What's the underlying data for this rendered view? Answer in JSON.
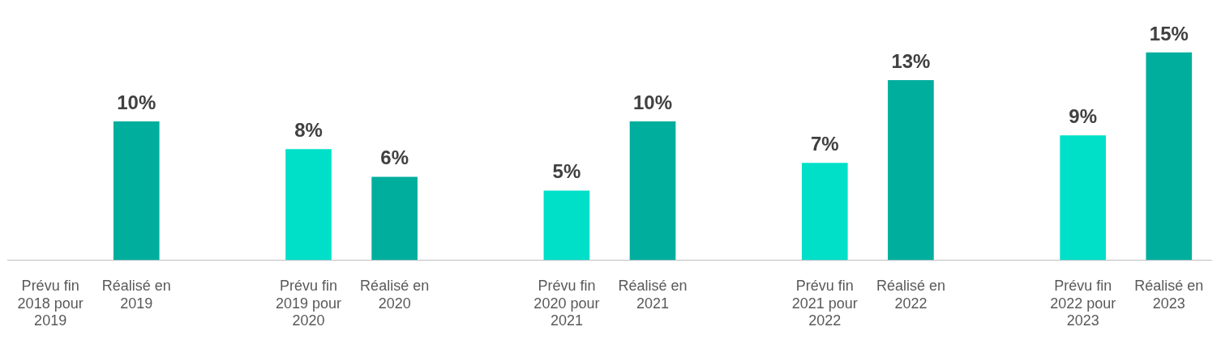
{
  "chart_data": {
    "type": "bar",
    "categories": [
      "Prévu fin 2018 pour 2019",
      "Réalisé en 2019",
      "Prévu fin 2019 pour 2020",
      "Réalisé en 2020",
      "Prévu fin 2020 pour 2021",
      "Réalisé en 2021",
      "Prévu fin 2021 pour 2022",
      "Réalisé en 2022",
      "Prévu fin 2022 pour 2023",
      "Réalisé en 2023"
    ],
    "values": [
      null,
      10,
      8,
      6,
      5,
      10,
      7,
      13,
      9,
      15
    ],
    "colors": [
      "#00e0c9",
      "#00ae9e",
      "#00e0c9",
      "#00ae9e",
      "#00e0c9",
      "#00ae9e",
      "#00e0c9",
      "#00ae9e",
      "#00e0c9",
      "#00ae9e"
    ],
    "value_labels": [
      null,
      "10%",
      "8%",
      "6%",
      "5%",
      "10%",
      "7%",
      "13%",
      "9%",
      "15%"
    ],
    "grid": false,
    "legend": false
  }
}
